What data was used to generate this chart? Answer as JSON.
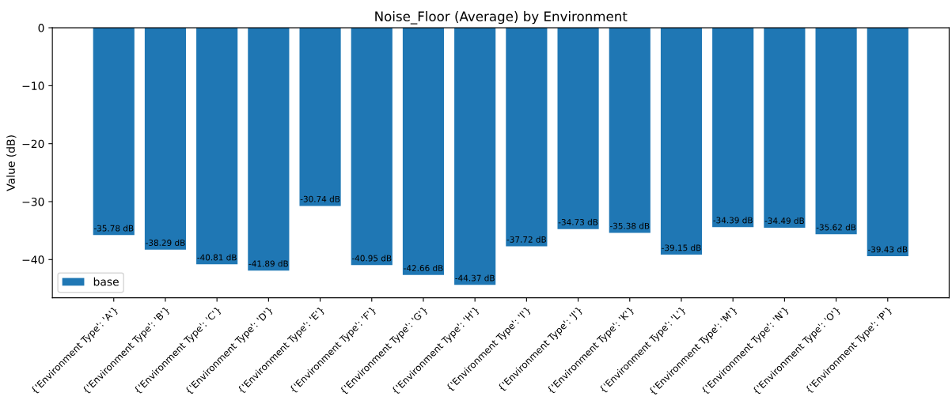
{
  "chart_data": {
    "type": "bar",
    "title": "Noise_Floor (Average) by Environment",
    "ylabel": "Value (dB)",
    "categories": [
      "{'Environment Type': 'A'}",
      "{'Environment Type': 'B'}",
      "{'Environment Type': 'C'}",
      "{'Environment Type': 'D'}",
      "{'Environment Type': 'E'}",
      "{'Environment Type': 'F'}",
      "{'Environment Type': 'G'}",
      "{'Environment Type': 'H'}",
      "{'Environment Type': 'I'}",
      "{'Environment Type': 'J'}",
      "{'Environment Type': 'K'}",
      "{'Environment Type': 'L'}",
      "{'Environment Type': 'M'}",
      "{'Environment Type': 'N'}",
      "{'Environment Type': 'O'}",
      "{'Environment Type': 'P'}"
    ],
    "series": [
      {
        "name": "base",
        "color": "#1f77b4",
        "values": [
          -35.78,
          -38.29,
          -40.81,
          -41.89,
          -30.74,
          -40.95,
          -42.66,
          -44.37,
          -37.72,
          -34.73,
          -35.38,
          -39.15,
          -34.39,
          -34.49,
          -35.62,
          -39.43
        ],
        "value_labels": [
          "-35.78 dB",
          "-38.29 dB",
          "-40.81 dB",
          "-41.89 dB",
          "-30.74 dB",
          "-40.95 dB",
          "-42.66 dB",
          "-44.37 dB",
          "-37.72 dB",
          "-34.73 dB",
          "-35.38 dB",
          "-39.15 dB",
          "-34.39 dB",
          "-34.49 dB",
          "-35.62 dB",
          "-39.43 dB"
        ]
      }
    ],
    "ylim": [
      -46.6,
      0
    ],
    "yticks": [
      {
        "value": -40,
        "label": "−40"
      },
      {
        "value": -30,
        "label": "−30"
      },
      {
        "value": -20,
        "label": "−20"
      },
      {
        "value": -10,
        "label": "−10"
      },
      0
    ],
    "legend": "lower left",
    "grid": false
  }
}
